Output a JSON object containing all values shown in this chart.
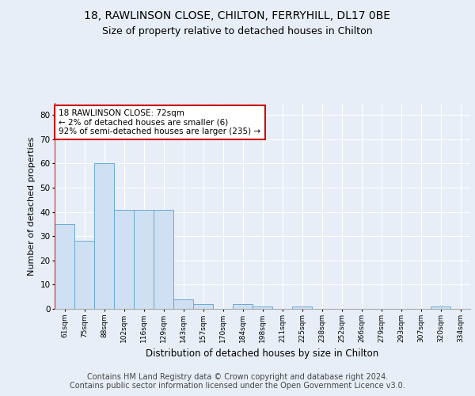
{
  "title1": "18, RAWLINSON CLOSE, CHILTON, FERRYHILL, DL17 0BE",
  "title2": "Size of property relative to detached houses in Chilton",
  "xlabel": "Distribution of detached houses by size in Chilton",
  "ylabel": "Number of detached properties",
  "categories": [
    "61sqm",
    "75sqm",
    "88sqm",
    "102sqm",
    "116sqm",
    "129sqm",
    "143sqm",
    "157sqm",
    "170sqm",
    "184sqm",
    "198sqm",
    "211sqm",
    "225sqm",
    "238sqm",
    "252sqm",
    "266sqm",
    "279sqm",
    "293sqm",
    "307sqm",
    "320sqm",
    "334sqm"
  ],
  "values": [
    35,
    28,
    60,
    41,
    41,
    41,
    4,
    2,
    0,
    2,
    1,
    0,
    1,
    0,
    0,
    0,
    0,
    0,
    0,
    1,
    0
  ],
  "bar_color": "#cfe0f2",
  "bar_edge_color": "#6aaad4",
  "ylim": [
    0,
    85
  ],
  "yticks": [
    0,
    10,
    20,
    30,
    40,
    50,
    60,
    70,
    80
  ],
  "vline_color": "#cc0000",
  "annotation_box_text": "18 RAWLINSON CLOSE: 72sqm\n← 2% of detached houses are smaller (6)\n92% of semi-detached houses are larger (235) →",
  "annotation_box_color": "#cc0000",
  "annotation_box_fill": "#ffffff",
  "footer": "Contains HM Land Registry data © Crown copyright and database right 2024.\nContains public sector information licensed under the Open Government Licence v3.0.",
  "bg_color": "#e8eef8",
  "plot_bg_color": "#e8eef8",
  "grid_color": "#ffffff",
  "title1_fontsize": 10,
  "title2_fontsize": 9,
  "xlabel_fontsize": 8.5,
  "ylabel_fontsize": 8,
  "footer_fontsize": 7
}
